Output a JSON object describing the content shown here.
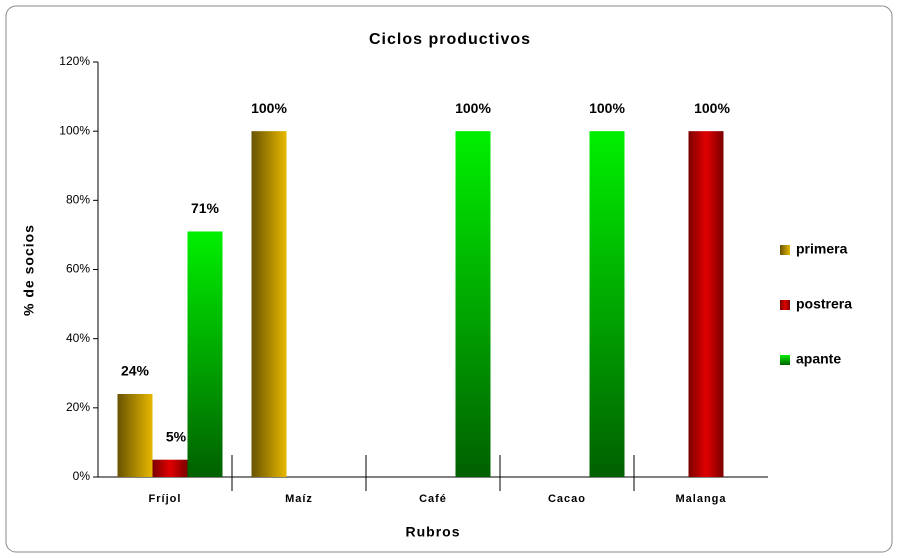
{
  "chart_data": {
    "type": "bar",
    "title": "Ciclos productivos",
    "x_label": "Rubros",
    "y_label": "% de socios",
    "categories": [
      "Fríjol",
      "Maíz",
      "Café",
      "Cacao",
      "Malanga"
    ],
    "series": [
      {
        "name": "primera",
        "color": "#e8b800",
        "values": [
          24,
          100,
          null,
          null,
          null
        ],
        "value_labels": [
          "24%",
          "100%",
          null,
          null,
          null
        ]
      },
      {
        "name": "postrera",
        "color": "#e00000",
        "values": [
          5,
          null,
          null,
          null,
          100
        ],
        "value_labels": [
          "5%",
          null,
          null,
          null,
          "100%"
        ]
      },
      {
        "name": "apante",
        "color": "#00f000",
        "values": [
          71,
          null,
          100,
          100,
          null
        ],
        "value_labels": [
          "71%",
          null,
          "100%",
          "100%",
          null
        ]
      }
    ],
    "ylim": [
      0,
      120
    ],
    "yticks": [
      {
        "value": 0,
        "label": "0%"
      },
      {
        "value": 20,
        "label": "20%"
      },
      {
        "value": 40,
        "label": "40%"
      },
      {
        "value": 60,
        "label": "60%"
      },
      {
        "value": 80,
        "label": "80%"
      },
      {
        "value": 100,
        "label": "100%"
      },
      {
        "value": 120,
        "label": "120%"
      }
    ],
    "legend": "right"
  }
}
